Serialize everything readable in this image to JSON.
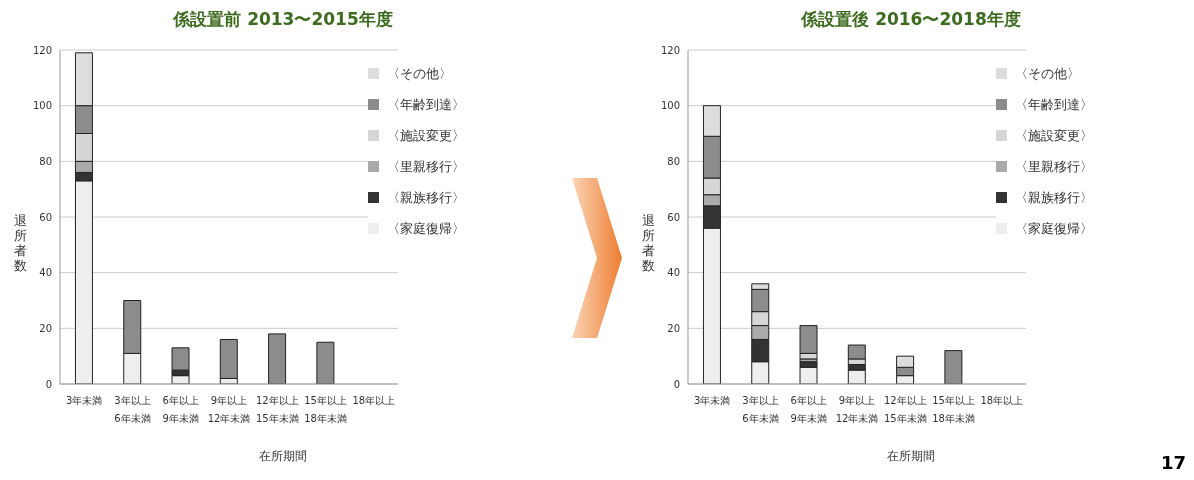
{
  "chart_data": [
    {
      "type": "bar",
      "title": "係設置前 2013〜2015年度",
      "xlabel": "在所期間",
      "ylabel": "退所者数",
      "categories": [
        "3年未満",
        "3年以上\n6年未満",
        "6年以上\n9年未満",
        "9年以上\n12年未満",
        "12年以上\n15年未満",
        "15年以上\n18年未満",
        "18年以上"
      ],
      "stacked": true,
      "ylim": [
        0,
        120
      ],
      "yticks": [
        0,
        20,
        40,
        60,
        80,
        100,
        120
      ],
      "grid": "y",
      "legend": "top right",
      "series": [
        {
          "name": "〈家庭復帰〉",
          "color": "#eeeeee",
          "values": [
            73,
            11,
            3,
            2,
            0,
            0,
            0
          ]
        },
        {
          "name": "〈親族移行〉",
          "color": "#333333",
          "values": [
            3,
            0,
            2,
            0,
            0,
            0,
            0
          ]
        },
        {
          "name": "〈里親移行〉",
          "color": "#aaaaaa",
          "values": [
            4,
            0,
            0,
            0,
            0,
            0,
            0
          ]
        },
        {
          "name": "〈施設変更〉",
          "color": "#d6d6d6",
          "values": [
            10,
            0,
            0,
            0,
            0,
            0,
            0
          ]
        },
        {
          "name": "〈年齢到達〉",
          "color": "#8c8c8c",
          "values": [
            10,
            19,
            8,
            14,
            18,
            15,
            0
          ]
        },
        {
          "name": "〈その他〉",
          "color": "#dddddd",
          "values": [
            19,
            0,
            0,
            0,
            0,
            0,
            0
          ]
        }
      ]
    },
    {
      "type": "bar",
      "title": "係設置後 2016〜2018年度",
      "xlabel": "在所期間",
      "ylabel": "退所者数",
      "categories": [
        "3年未満",
        "3年以上\n6年未満",
        "6年以上\n9年未満",
        "9年以上\n12年未満",
        "12年以上\n15年未満",
        "15年以上\n18年未満",
        "18年以上"
      ],
      "stacked": true,
      "ylim": [
        0,
        120
      ],
      "yticks": [
        0,
        20,
        40,
        60,
        80,
        100,
        120
      ],
      "grid": "y",
      "legend": "top right",
      "annotations": [
        "17"
      ],
      "series": [
        {
          "name": "〈家庭復帰〉",
          "color": "#eeeeee",
          "values": [
            56,
            8,
            6,
            5,
            3,
            0,
            0
          ]
        },
        {
          "name": "〈親族移行〉",
          "color": "#333333",
          "values": [
            8,
            8,
            2,
            2,
            0,
            0,
            0
          ]
        },
        {
          "name": "〈里親移行〉",
          "color": "#aaaaaa",
          "values": [
            4,
            5,
            1,
            0,
            0,
            0,
            0
          ]
        },
        {
          "name": "〈施設変更〉",
          "color": "#d6d6d6",
          "values": [
            6,
            5,
            2,
            2,
            0,
            0,
            0
          ]
        },
        {
          "name": "〈年齢到達〉",
          "color": "#8c8c8c",
          "values": [
            15,
            8,
            10,
            5,
            3,
            12,
            0
          ]
        },
        {
          "name": "〈その他〉",
          "color": "#dddddd",
          "values": [
            11,
            2,
            0,
            0,
            4,
            0,
            0
          ]
        }
      ]
    }
  ]
}
